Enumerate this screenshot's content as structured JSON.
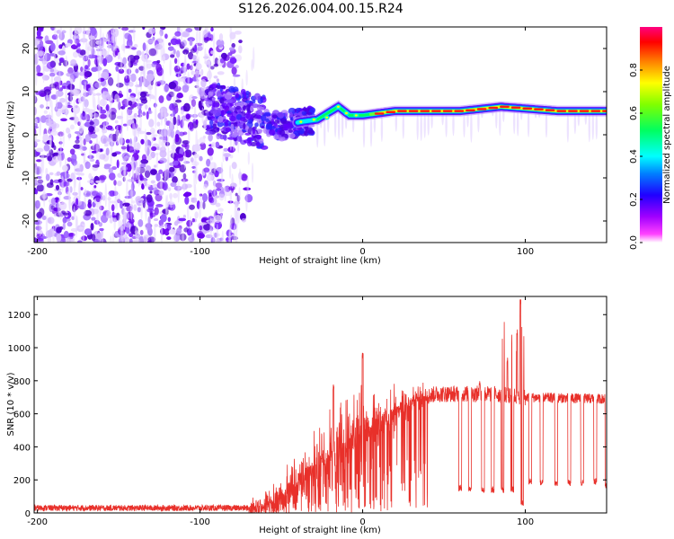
{
  "title": "S126.2026.004.00.15.R24",
  "chart_data": [
    {
      "type": "heatmap",
      "xlabel": "Height of straight line (km)",
      "ylabel": "Frequency (Hz)",
      "xlim": [
        -202,
        150
      ],
      "ylim": [
        -25,
        25
      ],
      "xticks": [
        -200,
        -100,
        0,
        100
      ],
      "yticks": [
        -20,
        -10,
        0,
        10,
        20
      ],
      "colorbar": {
        "label": "Normalized spectral amplitude",
        "range": [
          0.0,
          1.0
        ],
        "ticks": [
          0.0,
          0.2,
          0.4,
          0.6,
          0.8
        ],
        "tick_labels": [
          "0.0",
          "0.2",
          "0.4",
          "0.6",
          "0.8"
        ],
        "colormap": [
          "#ffffff",
          "#ff00ff",
          "#8000ff",
          "#0000ff",
          "#00ffff",
          "#00ff00",
          "#ffff00",
          "#ff8000",
          "#ff0000",
          "#ff0080"
        ]
      },
      "features": {
        "noise_region_x": [
          -202,
          -70
        ],
        "transition_region_x": [
          -95,
          -30
        ],
        "ridge": [
          {
            "x": -95,
            "y": 6
          },
          {
            "x": -80,
            "y": 5
          },
          {
            "x": -65,
            "y": 3
          },
          {
            "x": -50,
            "y": 2
          },
          {
            "x": -38,
            "y": 3
          },
          {
            "x": -28,
            "y": 3.5
          },
          {
            "x": -15,
            "y": 6.5
          },
          {
            "x": -8,
            "y": 4.5
          },
          {
            "x": 0,
            "y": 4.5
          },
          {
            "x": 20,
            "y": 5.5
          },
          {
            "x": 60,
            "y": 5.5
          },
          {
            "x": 85,
            "y": 6.5
          },
          {
            "x": 120,
            "y": 5.5
          },
          {
            "x": 150,
            "y": 5.5
          }
        ]
      }
    },
    {
      "type": "line",
      "xlabel": "Height of straight line (km)",
      "ylabel": "SNR (10 * v/v)",
      "xlim": [
        -202,
        150
      ],
      "ylim": [
        0,
        1310
      ],
      "xticks": [
        -200,
        -100,
        0,
        100
      ],
      "yticks": [
        0,
        200,
        400,
        600,
        800,
        1000,
        1200
      ],
      "series_color": "#e8302a",
      "envelope": [
        {
          "x": -202,
          "y": 30
        },
        {
          "x": -70,
          "y": 30
        },
        {
          "x": -55,
          "y": 60
        },
        {
          "x": -40,
          "y": 180
        },
        {
          "x": -25,
          "y": 320
        },
        {
          "x": -10,
          "y": 430
        },
        {
          "x": 0,
          "y": 500
        },
        {
          "x": 15,
          "y": 600
        },
        {
          "x": 30,
          "y": 680
        },
        {
          "x": 45,
          "y": 720
        },
        {
          "x": 60,
          "y": 720
        },
        {
          "x": 80,
          "y": 720
        },
        {
          "x": 100,
          "y": 700
        },
        {
          "x": 150,
          "y": 690
        }
      ],
      "dropouts": [
        {
          "x": 60,
          "y": 150
        },
        {
          "x": 66,
          "y": 150
        },
        {
          "x": 74,
          "y": 140
        },
        {
          "x": 80,
          "y": 140
        },
        {
          "x": 86,
          "y": 140
        },
        {
          "x": 92,
          "y": 140
        },
        {
          "x": 98,
          "y": 60
        },
        {
          "x": 103,
          "y": 190
        },
        {
          "x": 110,
          "y": 180
        },
        {
          "x": 119,
          "y": 180
        },
        {
          "x": 127,
          "y": 180
        },
        {
          "x": 135,
          "y": 180
        },
        {
          "x": 143,
          "y": 190
        },
        {
          "x": 150,
          "y": 170
        }
      ],
      "spikes": [
        {
          "x": -18,
          "y": 780
        },
        {
          "x": 0,
          "y": 970
        },
        {
          "x": 72,
          "y": 800
        },
        {
          "x": 89,
          "y": 940
        },
        {
          "x": 95,
          "y": 1110
        },
        {
          "x": 97,
          "y": 1300
        }
      ]
    }
  ]
}
